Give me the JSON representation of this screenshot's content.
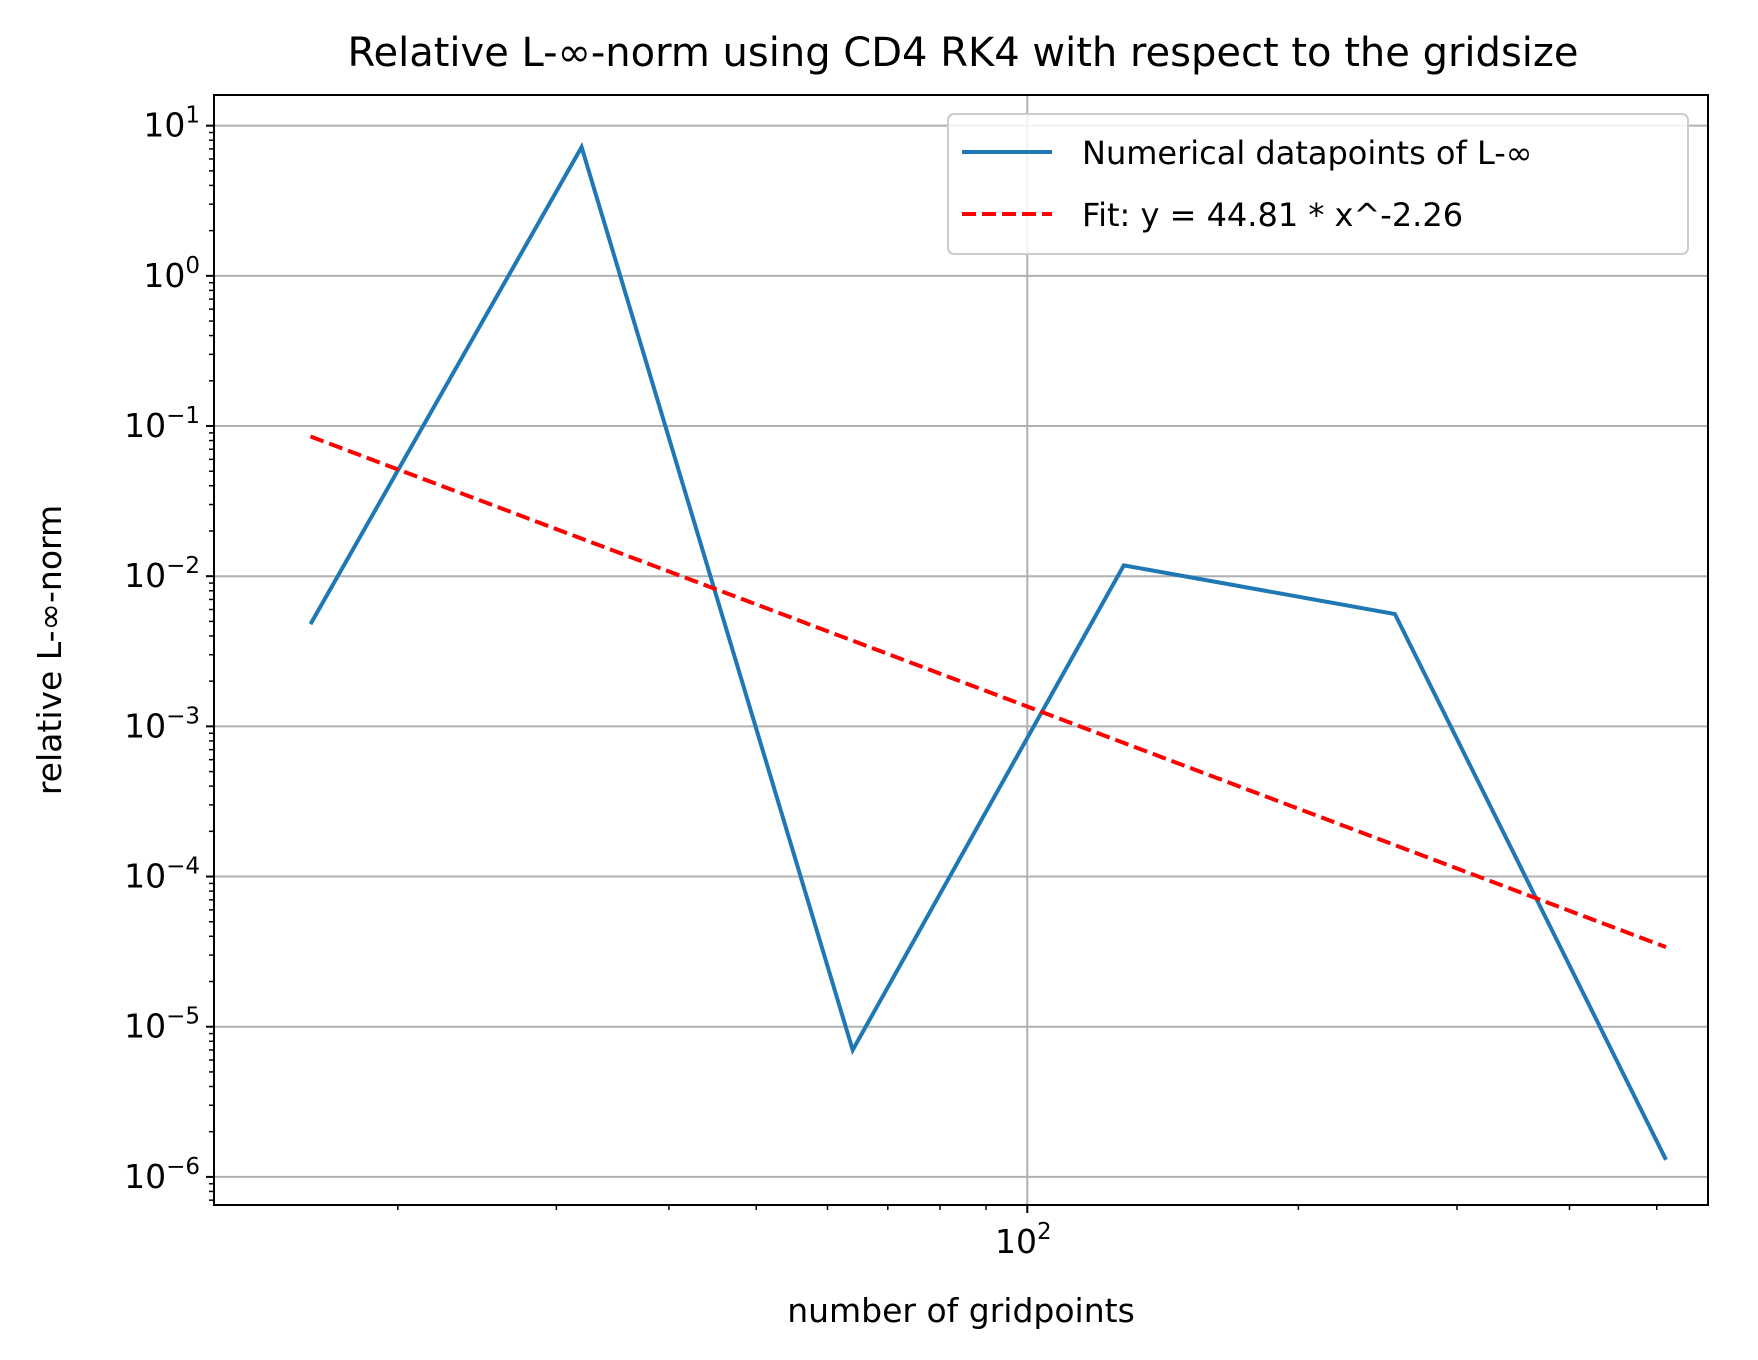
{
  "chart_data": {
    "type": "line",
    "title": "Relative L-∞-norm using CD4 RK4 with respect to the gridsize",
    "xlabel": "number of gridpoints",
    "ylabel": "relative L-∞-norm",
    "xscale": "log",
    "yscale": "log",
    "xlim": [
      12.5,
      570
    ],
    "ylim": [
      6.5e-07,
      16
    ],
    "grid": true,
    "legend_position": "upper right",
    "x_tick_labels": [
      {
        "base": "10",
        "exp": "2",
        "value": 100
      }
    ],
    "y_tick_labels": [
      {
        "base": "10",
        "exp": "1",
        "value": 10
      },
      {
        "base": "10",
        "exp": "0",
        "value": 1
      },
      {
        "base": "10",
        "exp": "−1",
        "value": 0.1
      },
      {
        "base": "10",
        "exp": "−2",
        "value": 0.01
      },
      {
        "base": "10",
        "exp": "−3",
        "value": 0.001
      },
      {
        "base": "10",
        "exp": "−4",
        "value": 0.0001
      },
      {
        "base": "10",
        "exp": "−5",
        "value": 1e-05
      },
      {
        "base": "10",
        "exp": "−6",
        "value": 1e-06
      }
    ],
    "series": [
      {
        "name": "Numerical datapoints of L-∞",
        "color": "#1f77b4",
        "style": "solid",
        "x": [
          16,
          32,
          64,
          128,
          256,
          512
        ],
        "y": [
          0.0048,
          7.2,
          7e-06,
          0.0118,
          0.0056,
          1.3e-06
        ]
      },
      {
        "name": "Fit: y = 44.81 * x^-2.26",
        "color": "#ff0000",
        "style": "dashed",
        "x": [
          16,
          32,
          64,
          128,
          256,
          512
        ],
        "y": [
          0.0852,
          0.01779,
          0.003717,
          0.000776,
          0.000162,
          3.39e-05
        ]
      }
    ]
  }
}
